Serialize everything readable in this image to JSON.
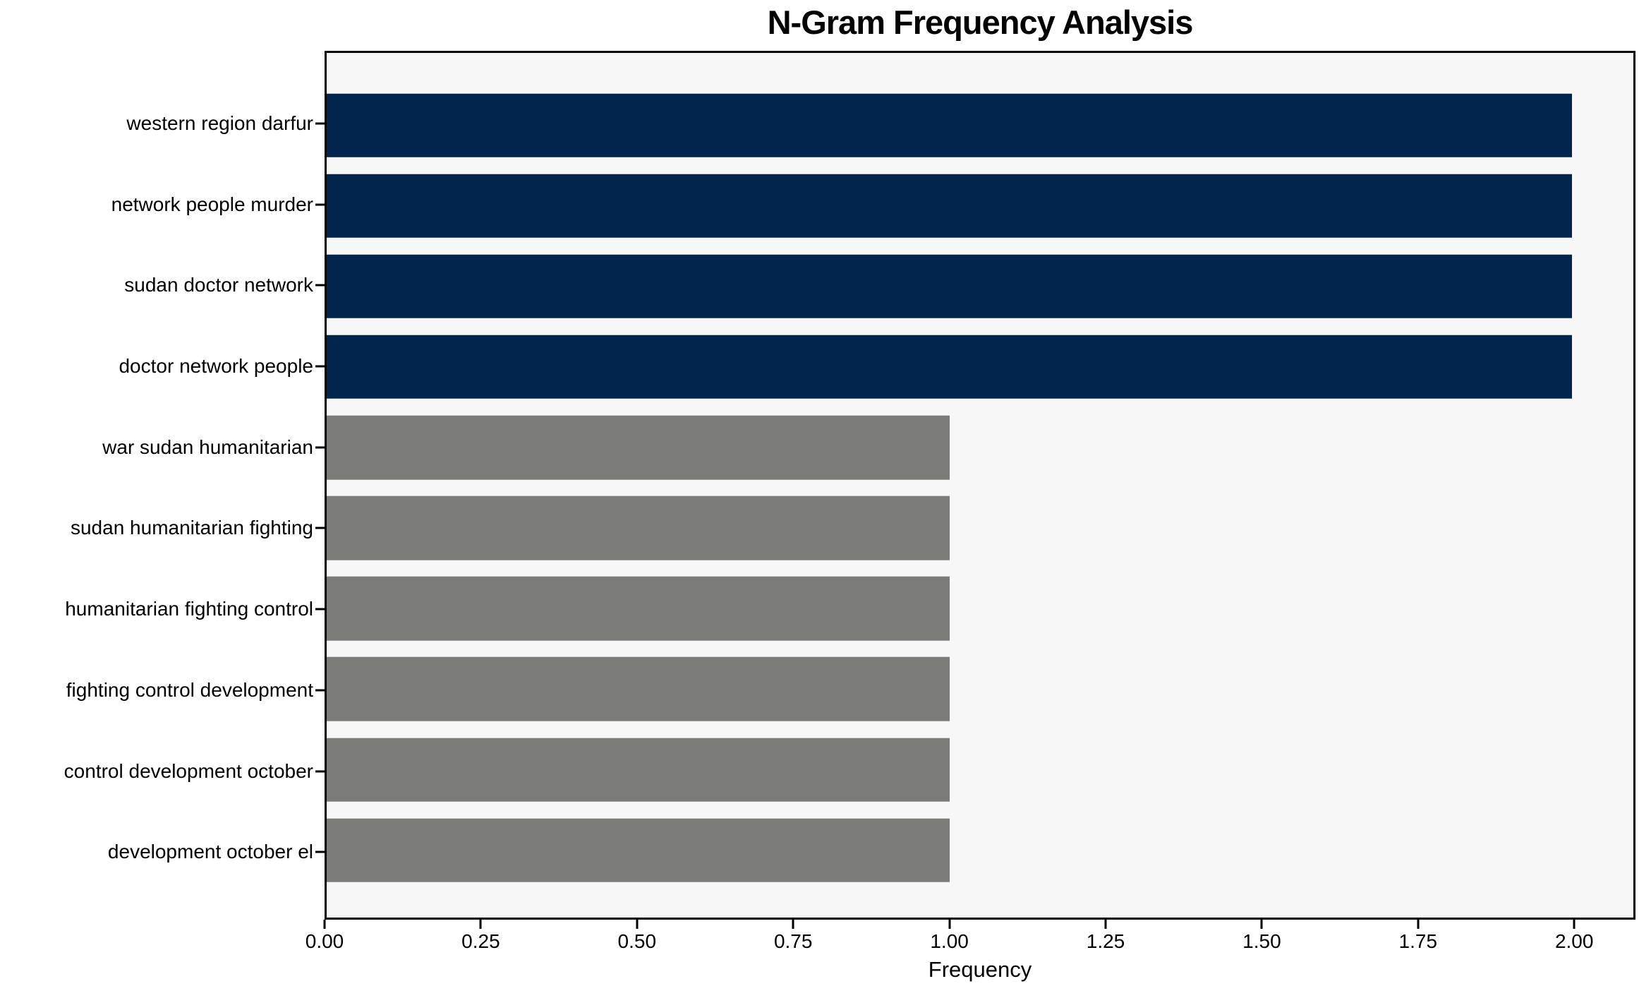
{
  "chart_data": {
    "type": "bar",
    "orientation": "horizontal",
    "title": "N-Gram Frequency Analysis",
    "xlabel": "Frequency",
    "ylabel": "",
    "categories": [
      "western region darfur",
      "network people murder",
      "sudan doctor network",
      "doctor network people",
      "war sudan humanitarian",
      "sudan humanitarian fighting",
      "humanitarian fighting control",
      "fighting control development",
      "control development october",
      "development october el"
    ],
    "values": [
      2,
      2,
      2,
      2,
      1,
      1,
      1,
      1,
      1,
      1
    ],
    "bar_colors": [
      "#02254D",
      "#02254D",
      "#02254D",
      "#02254D",
      "#7B7B77",
      "#7B7B77",
      "#7B7B77",
      "#7B7B77",
      "#7B7B77",
      "#7B7B77"
    ],
    "xlim": [
      0,
      2.098
    ],
    "x_tick_values": [
      0,
      0.25,
      0.5,
      0.75,
      1.0,
      1.25,
      1.5,
      1.75,
      2.0
    ],
    "x_tick_labels": [
      "0.00",
      "0.25",
      "0.50",
      "0.75",
      "1.00",
      "1.25",
      "1.50",
      "1.75",
      "2.00"
    ],
    "grid": false,
    "legend": "none",
    "colors": {
      "high_frequency_bar": "#02254D",
      "low_frequency_bar": "#7B7B77",
      "plot_background": "#F7F7F7",
      "figure_background": "#FFFFFF",
      "spine": "#000000",
      "text": "#000000"
    }
  }
}
